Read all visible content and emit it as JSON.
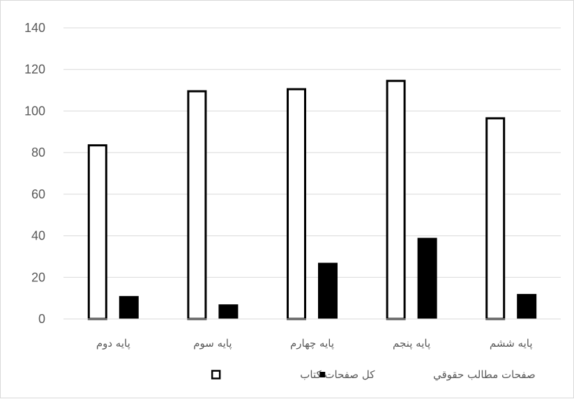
{
  "chart_data": {
    "type": "bar",
    "title": "",
    "xlabel": "",
    "ylabel": "",
    "ylim": [
      0,
      140
    ],
    "yticks": [
      0,
      20,
      40,
      60,
      80,
      100,
      120,
      140
    ],
    "grid": true,
    "legend_position": "bottom",
    "categories": [
      "پایه دوم",
      "پایه سوم",
      "پایه چهارم",
      "پایه پنجم",
      "پایه ششم"
    ],
    "series": [
      {
        "name": "کل صفحات کتاب",
        "values": [
          84,
          110,
          111,
          115,
          97
        ],
        "fill": "#ffffff",
        "stroke": "#000000"
      },
      {
        "name": "صفحات مطالب حقوقي",
        "values": [
          11,
          7,
          27,
          39,
          12
        ],
        "fill": "#000000",
        "stroke": "#000000"
      }
    ],
    "legend_order": [
      1,
      0
    ]
  }
}
